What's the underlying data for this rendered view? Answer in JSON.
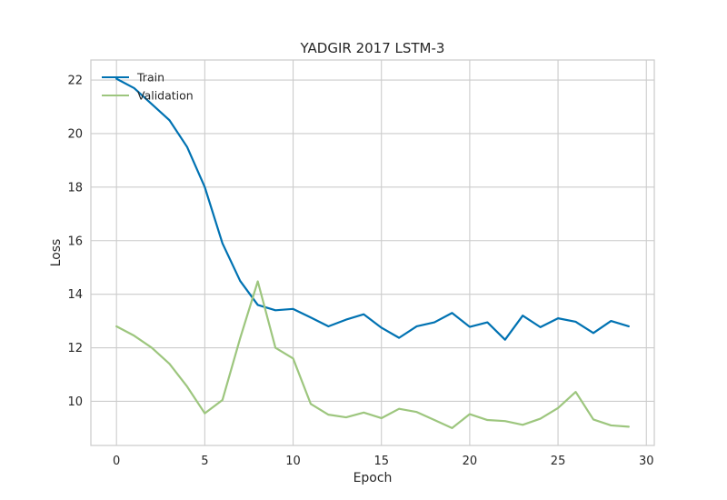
{
  "chart_data": {
    "type": "line",
    "title": "YADGIR 2017 LSTM-3",
    "xlabel": "Epoch",
    "ylabel": "Loss",
    "xlim": [
      -1.45,
      30.45
    ],
    "ylim": [
      8.35,
      22.75
    ],
    "xticks": [
      0,
      5,
      10,
      15,
      20,
      25,
      30
    ],
    "yticks": [
      10,
      12,
      14,
      16,
      18,
      20,
      22
    ],
    "grid": true,
    "legend_position": "top-left",
    "x": [
      0,
      1,
      2,
      3,
      4,
      5,
      6,
      7,
      8,
      9,
      10,
      11,
      12,
      13,
      14,
      15,
      16,
      17,
      18,
      19,
      20,
      21,
      22,
      23,
      24,
      25,
      26,
      27,
      28,
      29
    ],
    "series": [
      {
        "name": "Train",
        "color": "#0072b2",
        "values": [
          22.05,
          21.7,
          21.1,
          20.5,
          19.5,
          18.0,
          15.9,
          14.5,
          13.6,
          13.4,
          13.45,
          13.13,
          12.8,
          13.05,
          13.25,
          12.75,
          12.37,
          12.8,
          12.95,
          13.3,
          12.78,
          12.95,
          12.3,
          13.2,
          12.77,
          13.1,
          12.97,
          12.55,
          13.0,
          12.8
        ]
      },
      {
        "name": "Validation",
        "color": "#9dc67e",
        "values": [
          12.8,
          12.45,
          12.0,
          11.4,
          10.55,
          9.55,
          10.05,
          12.35,
          14.48,
          12.0,
          11.6,
          9.9,
          9.5,
          9.4,
          9.58,
          9.37,
          9.72,
          9.6,
          9.3,
          9.0,
          9.52,
          9.3,
          9.26,
          9.12,
          9.35,
          9.75,
          10.35,
          9.32,
          9.1,
          9.05
        ]
      }
    ]
  }
}
